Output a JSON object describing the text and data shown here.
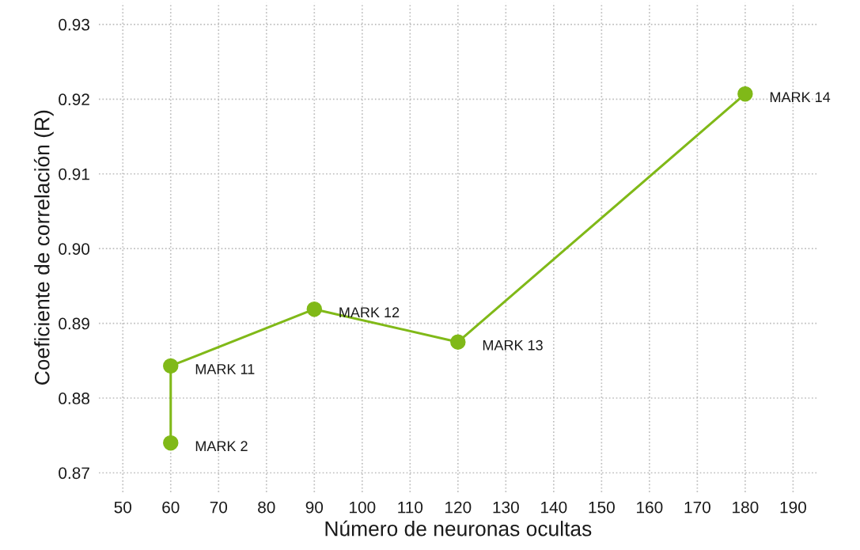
{
  "chart_data": {
    "type": "line",
    "xlabel": "Número de neuronas ocultas",
    "ylabel": "Coeficiente de correlación (R)",
    "x": [
      60,
      60,
      90,
      120,
      180
    ],
    "series": [
      {
        "color": "#80b918",
        "values": [
          0.874,
          0.8843,
          0.8919,
          0.8875,
          0.9207
        ]
      }
    ],
    "annotations": [
      {
        "text": "MARK 2",
        "x": 60,
        "y": 0.874
      },
      {
        "text": "MARK 11",
        "x": 60,
        "y": 0.8843
      },
      {
        "text": "MARK 12",
        "x": 90,
        "y": 0.8919
      },
      {
        "text": "MARK 13",
        "x": 120,
        "y": 0.8875
      },
      {
        "text": "MARK 14",
        "x": 180,
        "y": 0.9207
      }
    ],
    "xlim": [
      45,
      195
    ],
    "xticks": [
      50,
      60,
      70,
      80,
      90,
      100,
      110,
      120,
      130,
      140,
      150,
      160,
      170,
      180,
      190
    ],
    "ylim": [
      0.8674,
      0.9329
    ],
    "yticks": [
      {
        "value": 0.87,
        "label": "0.87"
      },
      {
        "value": 0.88,
        "label": "0.88"
      },
      {
        "value": 0.89,
        "label": "0.89"
      },
      {
        "value": 0.9,
        "label": "0.90"
      },
      {
        "value": 0.91,
        "label": "0.91"
      },
      {
        "value": 0.92,
        "label": "0.92"
      },
      {
        "value": 0.93,
        "label": "0.93"
      }
    ],
    "grid": true,
    "marker": "circle",
    "line_style": "solid"
  }
}
